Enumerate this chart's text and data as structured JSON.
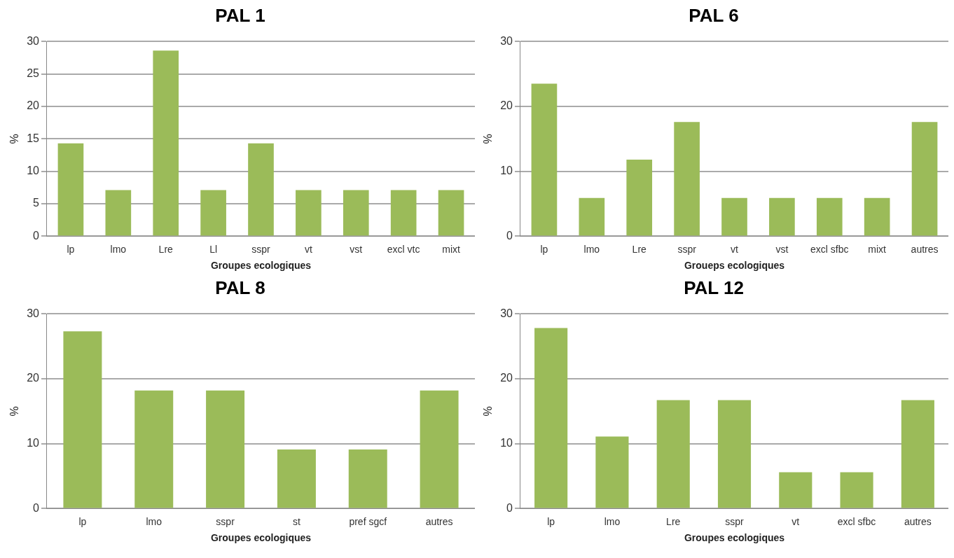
{
  "chart_data": [
    {
      "type": "bar",
      "title": "PAL 1",
      "xlabel": "Groupes ecologiques",
      "ylabel": "%",
      "categories": [
        "lp",
        "lmo",
        "Lre",
        "Ll",
        "sspr",
        "vt",
        "vst",
        "excl vtc",
        "mixt"
      ],
      "values": [
        14.3,
        7.1,
        28.6,
        7.1,
        14.3,
        7.1,
        7.1,
        7.1,
        7.1
      ],
      "color": "#9bbb59",
      "ylim": [
        0,
        30
      ],
      "yticks": [
        0,
        5,
        10,
        15,
        20,
        25,
        30
      ],
      "grid": "y"
    },
    {
      "type": "bar",
      "title": "PAL 6",
      "xlabel": "Groueps ecologiques",
      "ylabel": "%",
      "categories": [
        "lp",
        "lmo",
        "Lre",
        "sspr",
        "vt",
        "vst",
        "excl sfbc",
        "mixt",
        "autres"
      ],
      "values": [
        23.5,
        5.9,
        11.8,
        17.6,
        5.9,
        5.9,
        5.9,
        5.9,
        17.6
      ],
      "color": "#9bbb59",
      "ylim": [
        0,
        30
      ],
      "yticks": [
        0,
        10,
        20,
        30
      ],
      "grid": "y"
    },
    {
      "type": "bar",
      "title": "PAL 8",
      "xlabel": "Groupes ecologiques",
      "ylabel": "%",
      "categories": [
        "lp",
        "lmo",
        "sspr",
        "st",
        "pref sgcf",
        "autres"
      ],
      "values": [
        27.3,
        18.2,
        18.2,
        9.1,
        9.1,
        18.2
      ],
      "color": "#9bbb59",
      "ylim": [
        0,
        30
      ],
      "yticks": [
        0,
        10,
        20,
        30
      ],
      "grid": "y"
    },
    {
      "type": "bar",
      "title": "PAL 12",
      "xlabel": "Groupes ecologiques",
      "ylabel": "%",
      "categories": [
        "lp",
        "lmo",
        "Lre",
        "sspr",
        "vt",
        "excl sfbc",
        "autres"
      ],
      "values": [
        27.8,
        11.1,
        16.7,
        16.7,
        5.6,
        5.6,
        16.7
      ],
      "color": "#9bbb59",
      "ylim": [
        0,
        30
      ],
      "yticks": [
        0,
        10,
        20,
        30
      ],
      "grid": "y"
    }
  ]
}
